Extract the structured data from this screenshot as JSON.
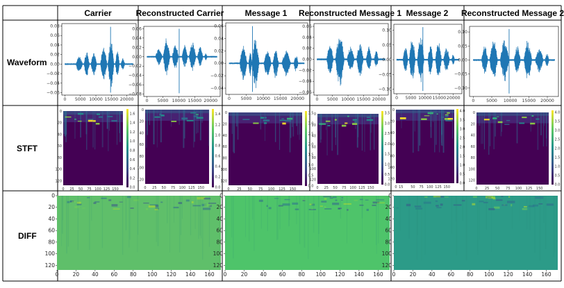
{
  "headers": [
    "Carrier",
    "Reconstructed Carrier",
    "Message 1",
    "Reconstructed Message 1",
    "Message 2",
    "Reconstructed Message 2"
  ],
  "row_labels": [
    "Waveform",
    "STFT",
    "DIFF"
  ],
  "chart_data": [
    {
      "type": "line",
      "panel": "Waveform / Carrier",
      "x_ticks": [
        0,
        5000,
        10000,
        15000,
        20000
      ],
      "y_ticks": [
        -0.06,
        -0.04,
        -0.02,
        0.0,
        0.02,
        0.04,
        0.06,
        0.08
      ],
      "ylim": [
        -0.065,
        0.085
      ],
      "xlim": [
        -1000,
        23000
      ],
      "color": "#1f77b4",
      "envelope": "carrier"
    },
    {
      "type": "line",
      "panel": "Waveform / Reconstructed Carrier",
      "x_ticks": [
        0,
        5000,
        10000,
        15000,
        20000
      ],
      "y_ticks": [
        -0.08,
        -0.06,
        -0.04,
        -0.02,
        0.0,
        0.02,
        0.04,
        0.06
      ],
      "ylim": [
        -0.085,
        0.065
      ],
      "xlim": [
        -1000,
        23000
      ],
      "color": "#1f77b4",
      "envelope": "recon_carrier"
    },
    {
      "type": "line",
      "panel": "Waveform / Message 1",
      "x_ticks": [
        0,
        5000,
        10000,
        15000,
        20000
      ],
      "y_ticks": [
        -0.04,
        -0.02,
        0.0,
        0.02,
        0.04,
        0.06
      ],
      "ylim": [
        -0.05,
        0.065
      ],
      "xlim": [
        -1000,
        23000
      ],
      "color": "#1f77b4",
      "envelope": "message1"
    },
    {
      "type": "line",
      "panel": "Waveform / Reconstructed Message 1",
      "x_ticks": [
        0,
        5000,
        10000,
        15000,
        20000
      ],
      "y_ticks": [
        -0.06,
        -0.04,
        -0.02,
        0.0,
        0.02,
        0.04,
        0.06
      ],
      "ylim": [
        -0.065,
        0.065
      ],
      "xlim": [
        -1000,
        23000
      ],
      "color": "#1f77b4",
      "envelope": "recon_message1"
    },
    {
      "type": "line",
      "panel": "Waveform / Message 2",
      "x_ticks": [
        0,
        5000,
        10000,
        15000,
        20000
      ],
      "y_ticks": [
        -0.1,
        -0.05,
        0.0,
        0.05,
        0.1
      ],
      "ylim": [
        -0.115,
        0.12
      ],
      "xlim": [
        -1000,
        23000
      ],
      "color": "#1f77b4",
      "envelope": "message2"
    },
    {
      "type": "line",
      "panel": "Waveform / Reconstructed Message 2",
      "x_ticks": [
        0,
        5000,
        10000,
        15000,
        20000
      ],
      "y_ticks": [
        -0.1,
        -0.05,
        0.0,
        0.05,
        0.1
      ],
      "ylim": [
        -0.13,
        0.12
      ],
      "xlim": [
        -1000,
        23000
      ],
      "color": "#1f77b4",
      "envelope": "recon_message2"
    },
    {
      "type": "heatmap",
      "panel": "STFT / Carrier",
      "x_ticks": [
        0,
        25,
        50,
        75,
        100,
        125,
        150
      ],
      "y_ticks": [
        0,
        20,
        40,
        60,
        80,
        100,
        120
      ],
      "xlim": [
        0,
        172
      ],
      "ylim": [
        128,
        0
      ],
      "colorbar_ticks": [
        "0.0",
        "0.2",
        "0.4",
        "0.6",
        "0.8",
        "1.0",
        "1.2",
        "1.4",
        "1.6"
      ],
      "vmax": 1.7
    },
    {
      "type": "heatmap",
      "panel": "STFT / Reconstructed Carrier",
      "x_ticks": [
        0,
        25,
        50,
        75,
        100,
        125,
        150
      ],
      "y_ticks": [
        0,
        20,
        40,
        60,
        80,
        100,
        120
      ],
      "xlim": [
        0,
        172
      ],
      "ylim": [
        128,
        0
      ],
      "colorbar_ticks": [
        "0.0",
        "0.2",
        "0.4",
        "0.6",
        "0.8",
        "1.0",
        "1.2",
        "1.4"
      ],
      "vmax": 1.5
    },
    {
      "type": "heatmap",
      "panel": "STFT / Message 1",
      "x_ticks": [
        0,
        25,
        50,
        75,
        100,
        125,
        150
      ],
      "y_ticks": [
        0,
        20,
        40,
        60,
        80,
        100,
        120
      ],
      "xlim": [
        0,
        172
      ],
      "ylim": [
        128,
        0
      ],
      "colorbar_ticks": [
        "0.0",
        "0.5",
        "1.0",
        "1.5",
        "2.0",
        "2.5",
        "3.0",
        "3.5"
      ],
      "vmax": 3.6
    },
    {
      "type": "heatmap",
      "panel": "STFT / Reconstructed Message 1",
      "x_ticks": [
        0,
        25,
        50,
        75,
        100,
        125,
        150
      ],
      "y_ticks": [
        0,
        20,
        40,
        60,
        80,
        100,
        120
      ],
      "xlim": [
        0,
        172
      ],
      "ylim": [
        128,
        0
      ],
      "colorbar_ticks": [
        "0.0",
        "0.5",
        "1.0",
        "1.5",
        "2.0",
        "2.5",
        "3.0",
        "3.5"
      ],
      "vmax": 3.6
    },
    {
      "type": "heatmap",
      "panel": "STFT / Message 2",
      "x_ticks": [
        0,
        15,
        50,
        75,
        100,
        125,
        150
      ],
      "y_ticks": [
        0,
        20,
        40,
        60,
        80,
        100,
        120
      ],
      "xlim": [
        0,
        172
      ],
      "ylim": [
        128,
        0
      ],
      "colorbar_ticks": [
        "0.0",
        "0.5",
        "1.0",
        "1.5",
        "2.0",
        "2.5",
        "3.0",
        "3.5",
        "4.0"
      ],
      "vmax": 4.1
    },
    {
      "type": "heatmap",
      "panel": "STFT / Reconstructed Message 2",
      "x_ticks": [
        0,
        25,
        50,
        75,
        100,
        125,
        150
      ],
      "y_ticks": [
        0,
        20,
        40,
        60,
        80,
        100,
        120
      ],
      "xlim": [
        0,
        172
      ],
      "ylim": [
        128,
        0
      ],
      "colorbar_ticks": [
        "0.0",
        "0.5",
        "1.0",
        "1.5",
        "2.0",
        "2.5",
        "3.0",
        "3.5",
        "4.0"
      ],
      "vmax": 4.1
    },
    {
      "type": "heatmap",
      "panel": "DIFF / Carrier",
      "x_ticks": [
        0,
        20,
        40,
        60,
        80,
        100,
        120,
        140,
        160
      ],
      "y_ticks": [
        0,
        20,
        40,
        60,
        80,
        100,
        120
      ],
      "xlim": [
        0,
        172
      ],
      "ylim": [
        128,
        0
      ],
      "base_color": "#5fbf6a"
    },
    {
      "type": "heatmap",
      "panel": "DIFF / Message 1",
      "x_ticks": [
        0,
        20,
        40,
        60,
        80,
        100,
        120,
        140,
        160
      ],
      "y_ticks": [
        0,
        20,
        40,
        60,
        80,
        100,
        120
      ],
      "xlim": [
        0,
        172
      ],
      "ylim": [
        128,
        0
      ],
      "base_color": "#4ec46a"
    },
    {
      "type": "heatmap",
      "panel": "DIFF / Message 2",
      "x_ticks": [
        0,
        20,
        40,
        60,
        80,
        100,
        120,
        140,
        160
      ],
      "y_ticks": [
        0,
        20,
        40,
        60,
        80,
        100,
        120
      ],
      "xlim": [
        0,
        172
      ],
      "ylim": [
        128,
        0
      ],
      "base_color": "#2c9b88"
    }
  ],
  "colors": {
    "line": "#1f77b4",
    "heat_bg": "#440154",
    "grid": "#000000"
  }
}
